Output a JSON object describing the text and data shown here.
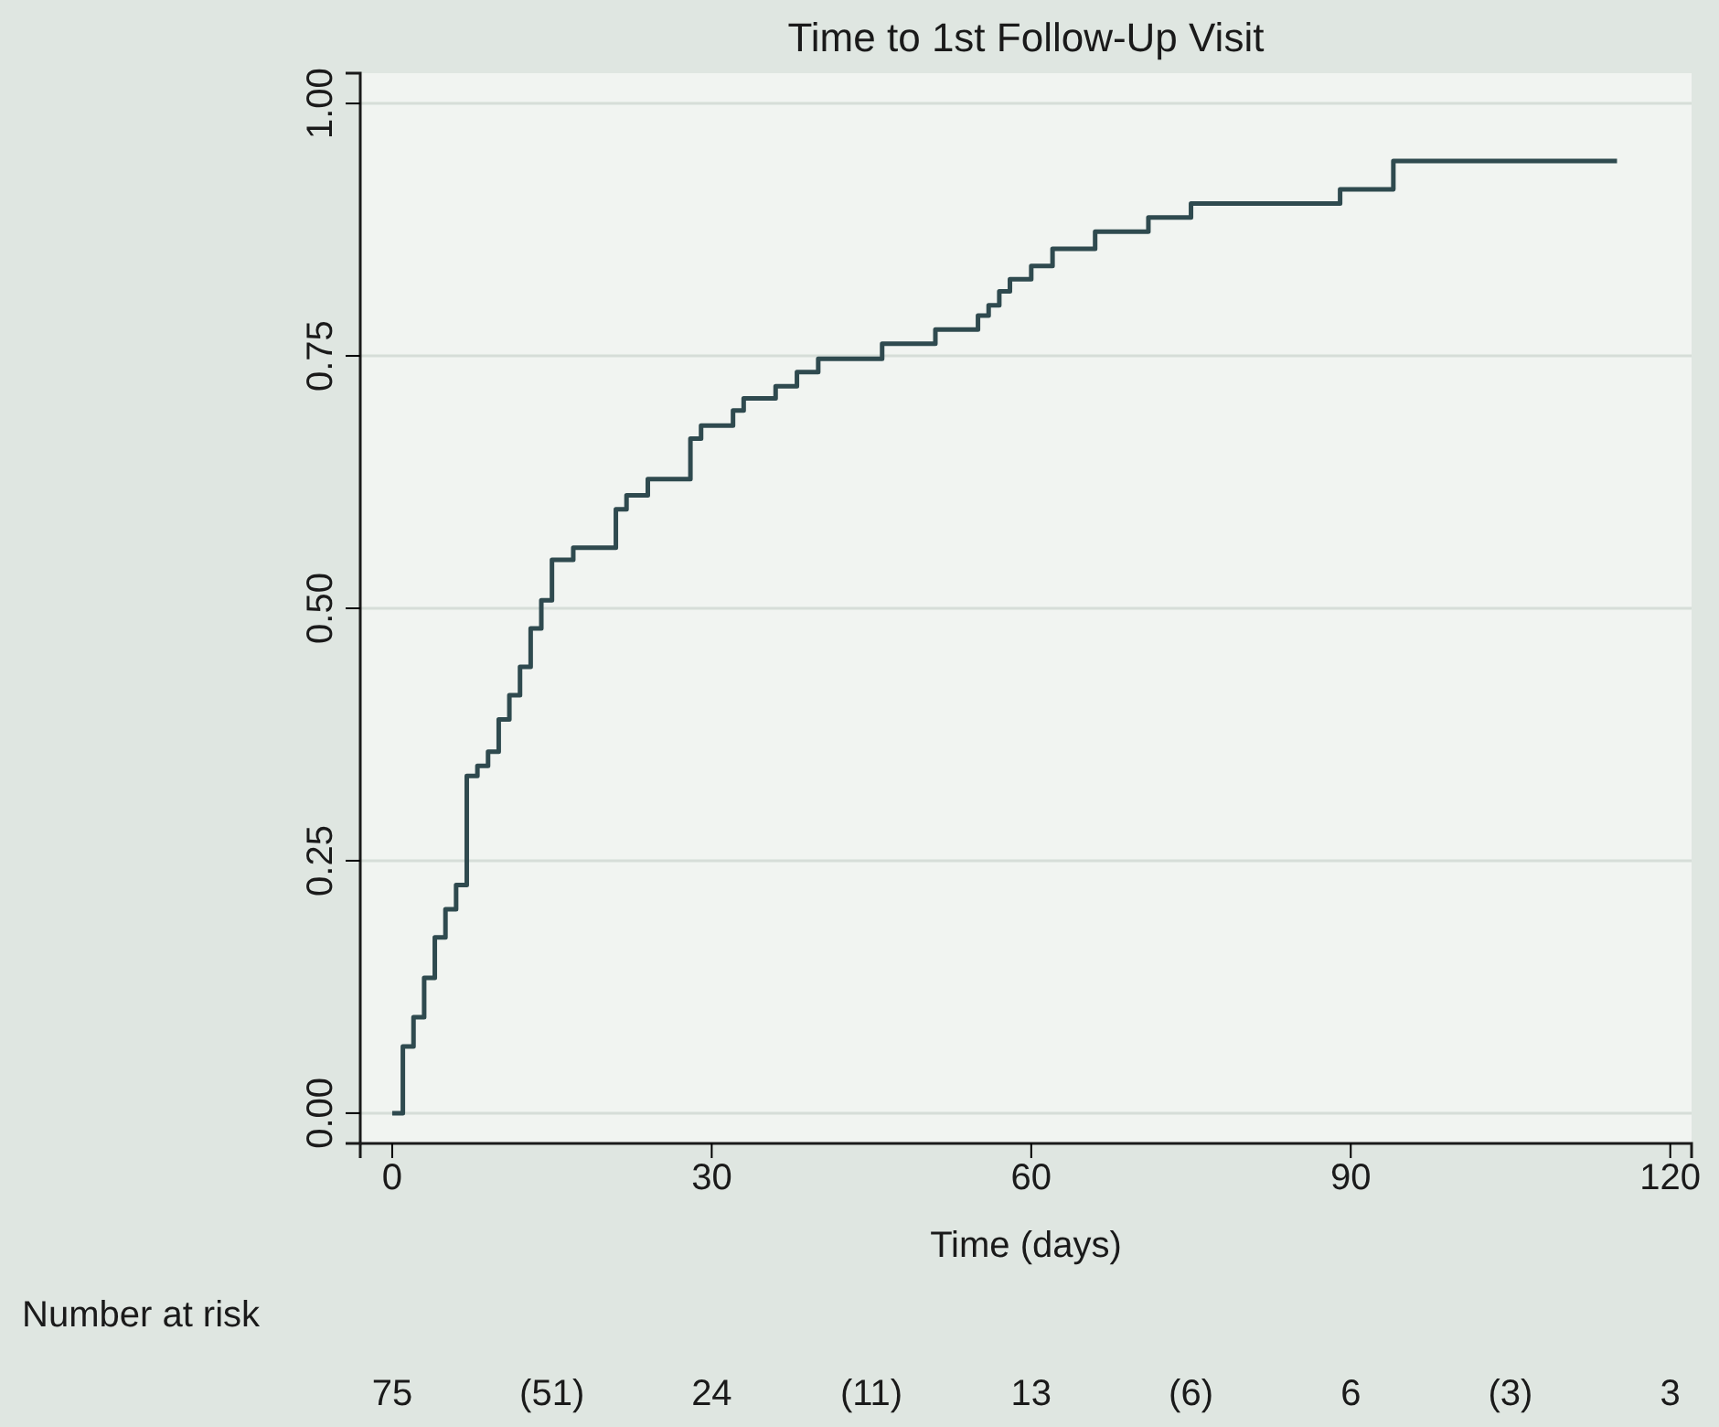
{
  "chart_data": {
    "type": "step",
    "title": "Time to 1st Follow-Up Visit",
    "xlabel": "Time (days)",
    "x": [
      0,
      1,
      2,
      3,
      4,
      5,
      6,
      7,
      8,
      9,
      10,
      11,
      12,
      13,
      14,
      15,
      17,
      21,
      22,
      24,
      28,
      29,
      32,
      33,
      36,
      38,
      40,
      46,
      51,
      55,
      56,
      57,
      58,
      60,
      62,
      66,
      71,
      75,
      89,
      94,
      115
    ],
    "series": [
      {
        "color": "#2f4a4f",
        "values": [
          0,
          0.066,
          0.095,
          0.134,
          0.174,
          0.202,
          0.226,
          0.334,
          0.344,
          0.358,
          0.39,
          0.414,
          0.442,
          0.48,
          0.508,
          0.548,
          0.56,
          0.598,
          0.612,
          0.628,
          0.668,
          0.681,
          0.696,
          0.708,
          0.72,
          0.734,
          0.747,
          0.762,
          0.776,
          0.79,
          0.8,
          0.814,
          0.826,
          0.839,
          0.856,
          0.873,
          0.887,
          0.901,
          0.915,
          0.943,
          0.943
        ]
      }
    ],
    "xlim": [
      -3,
      122
    ],
    "xticks": [
      0,
      30,
      60,
      90,
      120
    ],
    "ylim": [
      -0.03,
      1.03
    ],
    "yticks": [
      {
        "value": 0,
        "label": "0.00"
      },
      {
        "value": 0.25,
        "label": "0.25"
      },
      {
        "value": 0.5,
        "label": "0.50"
      },
      {
        "value": 0.75,
        "label": "0.75"
      },
      {
        "value": 1,
        "label": "1.00"
      }
    ],
    "grid": "y",
    "annotations": [
      "Number at risk",
      "75",
      "(51)",
      "24",
      "(11)",
      "13",
      "(6)",
      "6",
      "(3)",
      "3"
    ]
  }
}
